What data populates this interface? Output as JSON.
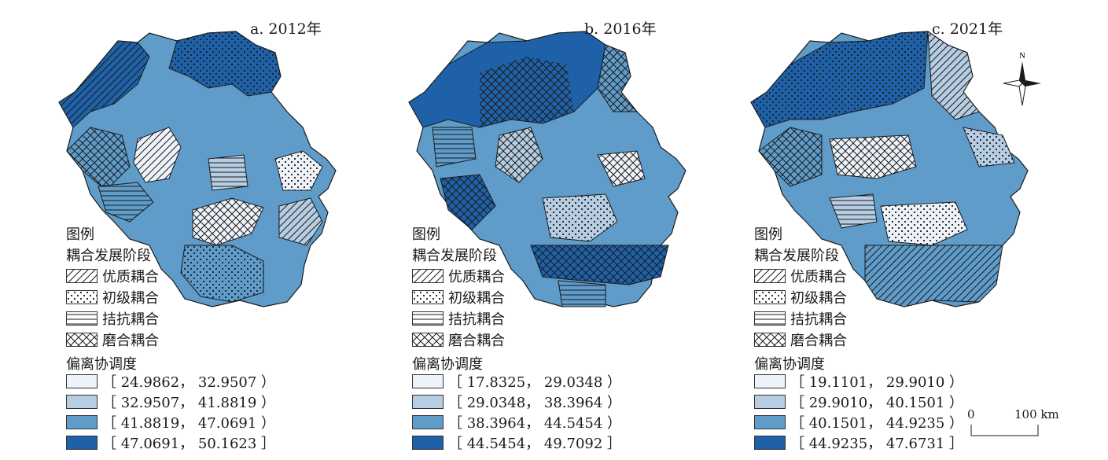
{
  "panels": [
    {
      "title": "a. 2012年",
      "ranges": [
        "［ 24.9862， 32.9507 ）",
        "［ 32.9507， 41.8819 ）",
        "［ 41.8819， 47.0691 ）",
        "［ 47.0691， 50.1623 ］"
      ]
    },
    {
      "title": "b. 2016年",
      "ranges": [
        "［ 17.8325， 29.0348 ）",
        "［ 29.0348， 38.3964 ）",
        "［ 38.3964， 44.5454 ）",
        "［ 44.5454， 49.7092 ］"
      ]
    },
    {
      "title": "c. 2021年",
      "ranges": [
        "［ 19.1101， 29.9010 ）",
        "［ 29.9010， 40.1501 ）",
        "［ 40.1501， 44.9235 ）",
        "［ 44.9235， 47.6731 ］"
      ]
    }
  ],
  "legend": {
    "title": "图例",
    "stage_title": "耦合发展阶段",
    "stages": [
      "优质耦合",
      "初级耦合",
      "拮抗耦合",
      "磨合耦合"
    ],
    "degree_title": "偏离协调度"
  },
  "colors": {
    "class1": "#eef3fa",
    "class2": "#b6cde3",
    "class3": "#5f9cca",
    "class4": "#1f61a8",
    "border": "#1a1a1a"
  },
  "compass": {
    "label": "N",
    "icon": "north-arrow-icon"
  },
  "scale": {
    "start": "0",
    "end": "100 km"
  }
}
